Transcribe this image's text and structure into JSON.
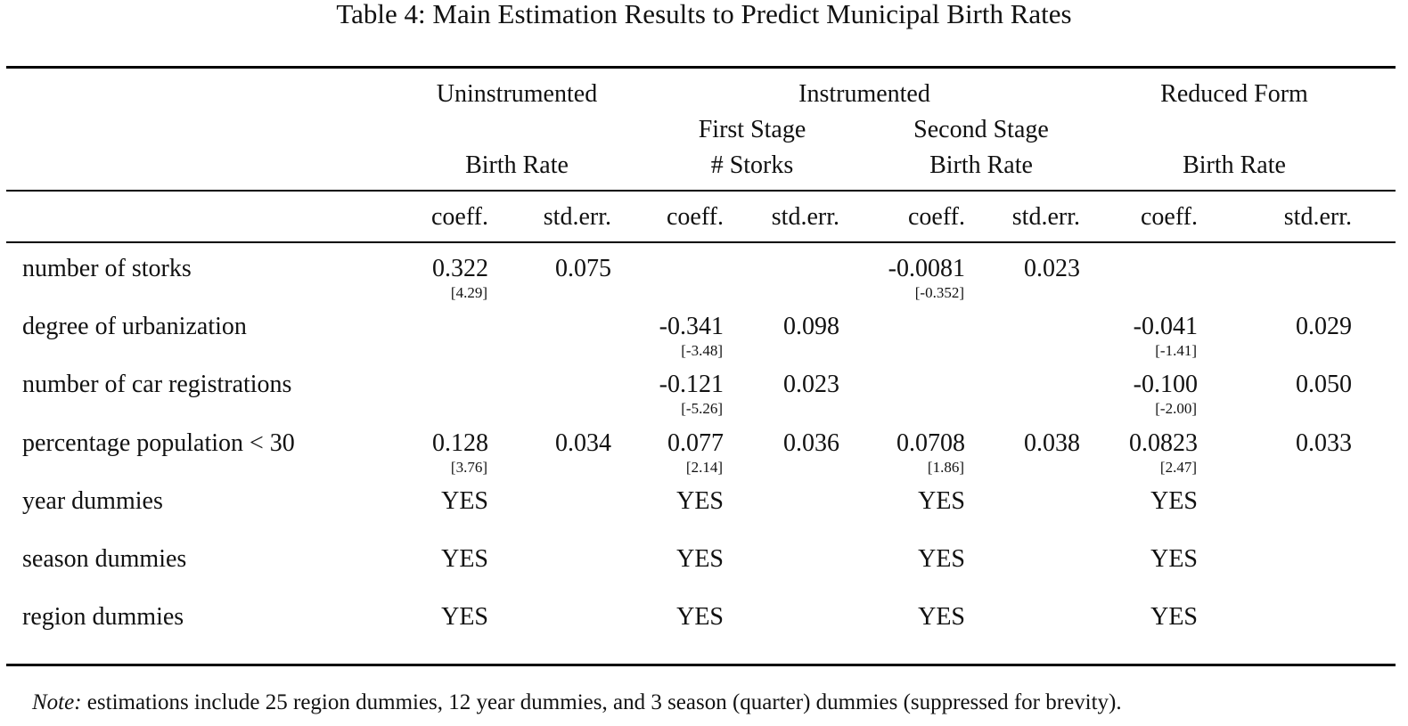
{
  "title": "Table 4: Main Estimation Results to Predict Municipal Birth Rates",
  "groups": {
    "uninstrumented": "Uninstrumented",
    "instrumented": "Instrumented",
    "reduced_form": "Reduced Form"
  },
  "subgroups": {
    "first_stage": "First Stage",
    "second_stage": "Second Stage"
  },
  "dependent": {
    "uninstrumented": "Birth Rate",
    "first_stage": "# Storks",
    "second_stage": "Birth Rate",
    "reduced_form": "Birth Rate"
  },
  "col_labels": {
    "coeff": "coeff.",
    "stderr": "std.err."
  },
  "rows": [
    {
      "label": "number of storks",
      "cells": {
        "c1": "0.322",
        "t1": "[4.29]",
        "s1": "0.075",
        "c3": "-0.0081",
        "t3": "[-0.352]",
        "s3": "0.023"
      }
    },
    {
      "label": "degree of urbanization",
      "cells": {
        "c2": "-0.341",
        "t2": "[-3.48]",
        "s2": "0.098",
        "c4": "-0.041",
        "t4": "[-1.41]",
        "s4": "0.029"
      }
    },
    {
      "label": "number of car registrations",
      "cells": {
        "c2": "-0.121",
        "t2": "[-5.26]",
        "s2": "0.023",
        "c4": "-0.100",
        "t4": "[-2.00]",
        "s4": "0.050"
      }
    },
    {
      "label": "percentage population < 30",
      "cells": {
        "c1": "0.128",
        "t1": "[3.76]",
        "s1": "0.034",
        "c2": "0.077",
        "t2": "[2.14]",
        "s2": "0.036",
        "c3": "0.0708",
        "t3": "[1.86]",
        "s3": "0.038",
        "c4": "0.0823",
        "t4": "[2.47]",
        "s4": "0.033"
      }
    },
    {
      "label": "year dummies",
      "cells": {
        "c1": "YES",
        "c2": "YES",
        "c3": "YES",
        "c4": "YES"
      }
    },
    {
      "label": "season dummies",
      "cells": {
        "c1": "YES",
        "c2": "YES",
        "c3": "YES",
        "c4": "YES"
      }
    },
    {
      "label": "region dummies",
      "cells": {
        "c1": "YES",
        "c2": "YES",
        "c3": "YES",
        "c4": "YES"
      }
    }
  ],
  "note": {
    "prefix": "Note:",
    "text": " estimations include 25 region dummies, 12 year dummies, and 3 season (quarter) dummies (suppressed for brevity)."
  }
}
